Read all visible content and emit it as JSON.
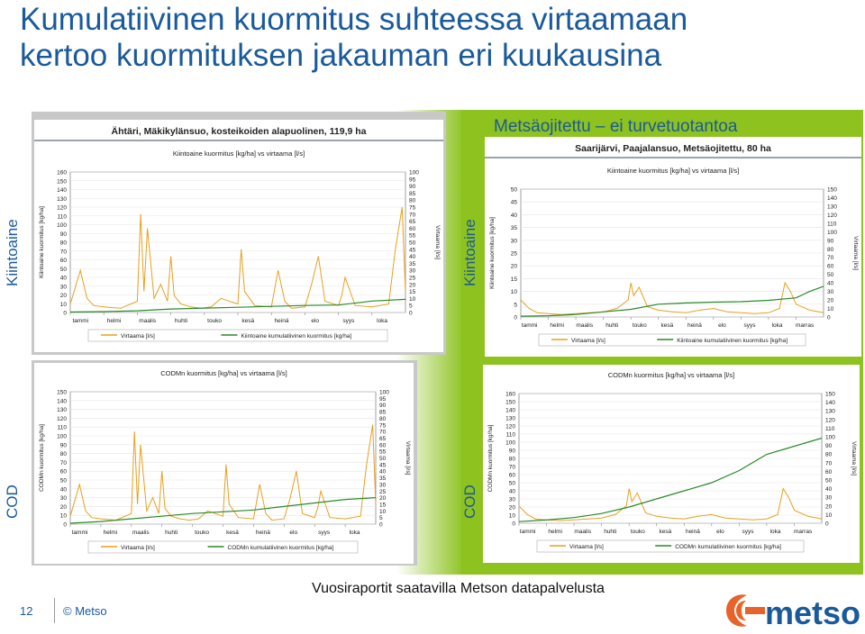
{
  "slide": {
    "title_line1": "Kumulatiivinen kuormitus suhteessa virtaamaan",
    "title_line2": "kertoo kuormituksen jakauman eri kuukausina",
    "subtitle": "Metsäojitettu – ei turvetuotantoa",
    "left_labels": {
      "top": "Kiintoaine",
      "bottom": "COD"
    },
    "right_labels": {
      "top": "Kiintoaine",
      "bottom": "COD"
    },
    "footer_note": "Vuosiraportit saatavilla Metson datapalvelusta",
    "page_number": "12",
    "copyright": "© Metso",
    "logo_text": "metso",
    "colors": {
      "accent_blue": "#1a5a9a",
      "green": "#8dc21f",
      "flow_line": "#e8a020",
      "cumulative_line": "#2a8a2a"
    }
  },
  "chart_data": [
    {
      "type": "line",
      "site_title": "Ähtäri, Mäkikylänsuo, kosteikoiden alapuolinen, 119,9 ha",
      "title": "Kiintoaine kuormitus [kg/ha] vs virtaama [l/s]",
      "ylabel_left": "Kiintoaine kuormitus [kg/ha]",
      "ylabel_right": "Virtaama [l/s]",
      "categories": [
        "tammi",
        "helmi",
        "maalis",
        "huhti",
        "touko",
        "kesä",
        "heinä",
        "elo",
        "syys",
        "loka"
      ],
      "yticks_left": [
        0,
        10,
        20,
        30,
        40,
        50,
        60,
        70,
        80,
        90,
        100,
        110,
        120,
        130,
        140,
        150,
        160
      ],
      "yticks_right": [
        0,
        5,
        10,
        15,
        20,
        25,
        30,
        35,
        40,
        45,
        50,
        55,
        60,
        65,
        70,
        75,
        80,
        85,
        90,
        95,
        100
      ],
      "ylim_left": [
        0,
        160
      ],
      "ylim_right": [
        0,
        100
      ],
      "legend": [
        "Virtaama [l/s]",
        "Kiintoaine kumulatiivinen kuormitus [kg/ha]"
      ],
      "series": [
        {
          "name": "Virtaama [l/s]",
          "axis": "right",
          "x": [
            0,
            0.3,
            0.5,
            0.7,
            1,
            1.5,
            2,
            2.1,
            2.2,
            2.3,
            2.5,
            2.7,
            2.9,
            3.0,
            3.1,
            3.3,
            3.6,
            3.9,
            4.2,
            4.5,
            5,
            5.1,
            5.2,
            5.5,
            6,
            6.2,
            6.4,
            6.6,
            7,
            7.2,
            7.4,
            7.6,
            8,
            8.1,
            8.2,
            8.5,
            9,
            9.5,
            9.7,
            9.9,
            10
          ],
          "y": [
            6,
            30,
            10,
            5,
            4,
            3,
            8,
            70,
            15,
            60,
            10,
            20,
            8,
            40,
            12,
            6,
            4,
            3,
            4,
            10,
            6,
            45,
            15,
            5,
            4,
            30,
            8,
            3,
            4,
            20,
            40,
            8,
            5,
            12,
            25,
            5,
            4,
            6,
            45,
            75,
            15
          ]
        },
        {
          "name": "Kiintoaine kumulatiivinen kuormitus [kg/ha]",
          "axis": "left",
          "x": [
            0,
            1,
            2,
            3,
            4,
            5,
            6,
            7,
            8,
            9,
            10
          ],
          "y": [
            0.5,
            1,
            2,
            4,
            5,
            6,
            7,
            8,
            8.5,
            13,
            15
          ]
        }
      ]
    },
    {
      "type": "line",
      "site_title": "Saarijärvi, Paajalansuo, Metsäojitettu, 80 ha",
      "title": "Kiintoaine kuormitus [kg/ha] vs virtaama [l/s]",
      "ylabel_left": "Kiintoaine kuormitus [kg/ha]",
      "ylabel_right": "Virtaama [l/s]",
      "categories": [
        "tammi",
        "helmi",
        "maalis",
        "huhti",
        "touko",
        "kesä",
        "heinä",
        "elo",
        "syys",
        "loka",
        "marras"
      ],
      "yticks_left": [
        0,
        5,
        10,
        15,
        20,
        25,
        30,
        35,
        40,
        45,
        50
      ],
      "yticks_right": [
        0,
        10,
        20,
        30,
        40,
        50,
        60,
        70,
        80,
        90,
        100,
        110,
        120,
        130,
        140,
        150
      ],
      "ylim_left": [
        0,
        50
      ],
      "ylim_right": [
        0,
        150
      ],
      "legend": [
        "Virtaama [l/s]",
        "Kiintoaine kumulatiivinen kuormitus [kg/ha]"
      ],
      "series": [
        {
          "name": "Virtaama [l/s]",
          "axis": "right",
          "x": [
            0,
            0.3,
            0.6,
            1,
            1.5,
            2,
            2.5,
            3,
            3.5,
            3.9,
            4,
            4.1,
            4.3,
            4.6,
            5,
            5.5,
            6,
            6.5,
            7,
            7.5,
            8,
            8.5,
            9,
            9.4,
            9.6,
            9.8,
            10,
            10.5,
            11
          ],
          "y": [
            20,
            10,
            5,
            4,
            3,
            4,
            5,
            6,
            10,
            20,
            40,
            25,
            35,
            12,
            8,
            6,
            5,
            8,
            10,
            6,
            5,
            4,
            5,
            10,
            40,
            30,
            15,
            8,
            5
          ]
        },
        {
          "name": "Kiintoaine kumulatiivinen kuormitus [kg/ha]",
          "axis": "left",
          "x": [
            0,
            1,
            2,
            3,
            4,
            5,
            6,
            7,
            8,
            9,
            10,
            10.5,
            11
          ],
          "y": [
            0.3,
            0.5,
            1,
            2,
            3,
            5,
            5.5,
            5.8,
            6,
            6.5,
            7.5,
            10,
            12
          ]
        }
      ]
    },
    {
      "type": "line",
      "title": "CODMn kuormitus [kg/ha] vs virtaama [l/s]",
      "ylabel_left": "CODMn kuormitus [kg/ha]",
      "ylabel_right": "Virtaama [l/s]",
      "categories": [
        "tammi",
        "helmi",
        "maalis",
        "huhti",
        "touko",
        "kesä",
        "heinä",
        "elo",
        "syys",
        "loka"
      ],
      "yticks_left": [
        0,
        10,
        20,
        30,
        40,
        50,
        60,
        70,
        80,
        90,
        100,
        110,
        120,
        130,
        140,
        150
      ],
      "yticks_right": [
        0,
        5,
        10,
        15,
        20,
        25,
        30,
        35,
        40,
        45,
        50,
        55,
        60,
        65,
        70,
        75,
        80,
        85,
        90,
        95,
        100
      ],
      "ylim_left": [
        0,
        150
      ],
      "ylim_right": [
        0,
        100
      ],
      "legend": [
        "Virtaama [l/s]",
        "CODMn kumulatiivinen kuormitus [kg/ha]"
      ],
      "series": [
        {
          "name": "Virtaama [l/s]",
          "axis": "right",
          "x": [
            0,
            0.3,
            0.5,
            0.7,
            1,
            1.5,
            2,
            2.1,
            2.2,
            2.3,
            2.5,
            2.7,
            2.9,
            3.0,
            3.1,
            3.3,
            3.6,
            3.9,
            4.2,
            4.5,
            5,
            5.1,
            5.2,
            5.5,
            6,
            6.2,
            6.4,
            6.6,
            7,
            7.2,
            7.4,
            7.6,
            8,
            8.1,
            8.2,
            8.5,
            9,
            9.5,
            9.7,
            9.9,
            10
          ],
          "y": [
            6,
            30,
            10,
            5,
            4,
            3,
            8,
            70,
            15,
            60,
            10,
            20,
            8,
            40,
            12,
            6,
            4,
            3,
            4,
            10,
            6,
            45,
            15,
            5,
            4,
            30,
            8,
            3,
            4,
            20,
            40,
            8,
            5,
            12,
            25,
            5,
            4,
            6,
            45,
            75,
            15
          ]
        },
        {
          "name": "CODMn kumulatiivinen kuormitus [kg/ha]",
          "axis": "left",
          "x": [
            0,
            1,
            2,
            3,
            4,
            5,
            6,
            7,
            8,
            9,
            10
          ],
          "y": [
            1,
            3,
            6,
            9,
            12,
            14,
            16,
            20,
            24,
            28,
            30
          ]
        }
      ]
    },
    {
      "type": "line",
      "title": "CODMn kuormitus [kg/ha] vs virtaama [l/s]",
      "ylabel_left": "CODMn kuormitus [kg/ha]",
      "ylabel_right": "Virtaama [l/s]",
      "categories": [
        "tammi",
        "helmi",
        "maalis",
        "huhti",
        "touko",
        "kesä",
        "heinä",
        "elo",
        "syys",
        "loka",
        "marras"
      ],
      "yticks_left": [
        0,
        10,
        20,
        30,
        40,
        50,
        60,
        70,
        80,
        90,
        100,
        110,
        120,
        130,
        140,
        150,
        160
      ],
      "yticks_right": [
        0,
        10,
        20,
        30,
        40,
        50,
        60,
        70,
        80,
        90,
        100,
        110,
        120,
        130,
        140,
        150
      ],
      "ylim_left": [
        0,
        160
      ],
      "ylim_right": [
        0,
        150
      ],
      "legend": [
        "Virtaama [l/s]",
        "CODMn kumulatiivinen kuormitus [kg/ha]"
      ],
      "series": [
        {
          "name": "Virtaama [l/s]",
          "axis": "right",
          "x": [
            0,
            0.3,
            0.6,
            1,
            1.5,
            2,
            2.5,
            3,
            3.5,
            3.9,
            4,
            4.1,
            4.3,
            4.6,
            5,
            5.5,
            6,
            6.5,
            7,
            7.5,
            8,
            8.5,
            9,
            9.4,
            9.6,
            9.8,
            10,
            10.5,
            11
          ],
          "y": [
            20,
            10,
            5,
            4,
            3,
            4,
            5,
            6,
            10,
            20,
            40,
            25,
            35,
            12,
            8,
            6,
            5,
            8,
            10,
            6,
            5,
            4,
            5,
            10,
            40,
            30,
            15,
            8,
            5
          ]
        },
        {
          "name": "CODMn kumulatiivinen kuormitus [kg/ha]",
          "axis": "left",
          "x": [
            0,
            1,
            2,
            3,
            4,
            5,
            6,
            7,
            8,
            9,
            10,
            10.5,
            11
          ],
          "y": [
            2,
            4,
            7,
            12,
            20,
            30,
            40,
            50,
            65,
            85,
            95,
            100,
            105
          ]
        }
      ]
    }
  ]
}
